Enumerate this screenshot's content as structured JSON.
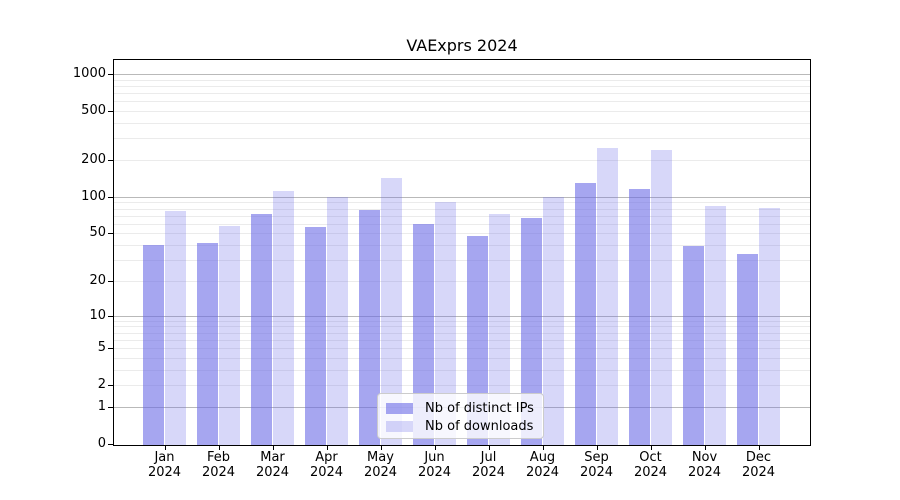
{
  "chart_data": {
    "type": "bar",
    "title": "VAExprs 2024",
    "categories": [
      {
        "month": "Jan",
        "year": "2024"
      },
      {
        "month": "Feb",
        "year": "2024"
      },
      {
        "month": "Mar",
        "year": "2024"
      },
      {
        "month": "Apr",
        "year": "2024"
      },
      {
        "month": "May",
        "year": "2024"
      },
      {
        "month": "Jun",
        "year": "2024"
      },
      {
        "month": "Jul",
        "year": "2024"
      },
      {
        "month": "Aug",
        "year": "2024"
      },
      {
        "month": "Sep",
        "year": "2024"
      },
      {
        "month": "Oct",
        "year": "2024"
      },
      {
        "month": "Nov",
        "year": "2024"
      },
      {
        "month": "Dec",
        "year": "2024"
      }
    ],
    "series": [
      {
        "name": "Nb of distinct IPs",
        "base_color": "#6666e6",
        "alpha": 0.58,
        "solid_color": "#a6a6f0",
        "values": [
          40,
          42,
          73,
          57,
          78,
          60,
          48,
          67,
          129,
          115,
          39,
          34
        ]
      },
      {
        "name": "Nb of downloads",
        "base_color": "#6666e6",
        "alpha": 0.26,
        "solid_color": "#d8d8f9",
        "values": [
          76,
          58,
          112,
          100,
          144,
          90,
          73,
          100,
          250,
          240,
          85,
          81
        ]
      }
    ],
    "yscale": "log1p",
    "ylim": [
      0,
      1300
    ],
    "yticks": [
      0,
      1,
      2,
      5,
      10,
      20,
      50,
      100,
      200,
      500,
      1000
    ],
    "xlabel": "",
    "ylabel": "",
    "grid": {
      "major_values": [
        1,
        10,
        100,
        1000
      ],
      "minor_values": [
        2,
        3,
        4,
        5,
        6,
        7,
        8,
        9,
        20,
        30,
        40,
        50,
        60,
        70,
        80,
        90,
        200,
        300,
        400,
        500,
        600,
        700,
        800,
        900
      ],
      "major_color": "#b9b9b9",
      "minor_color": "#ebebeb"
    },
    "legend": {
      "position": "inside-bottom-center"
    }
  }
}
